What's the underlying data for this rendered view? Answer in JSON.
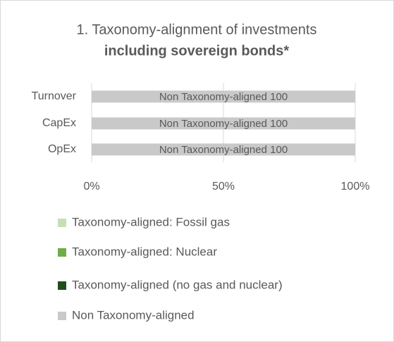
{
  "chart_data": {
    "type": "stacked-bar-horizontal",
    "title": "1. Taxonomy-alignment of investments",
    "subtitle": "including sovereign bonds*",
    "categories": [
      "Turnover",
      "CapEx",
      "OpEx"
    ],
    "series": [
      {
        "name": "Taxonomy-aligned: Fossil gas",
        "color": "#c5e0b4",
        "values": [
          0,
          0,
          0
        ]
      },
      {
        "name": "Taxonomy-aligned: Nuclear",
        "color": "#70ad47",
        "values": [
          0,
          0,
          0
        ]
      },
      {
        "name": "Taxonomy-aligned (no gas and nuclear)",
        "color": "#1f4e1f",
        "values": [
          0,
          0,
          0
        ]
      },
      {
        "name": "Non Taxonomy-aligned",
        "color": "#c9c9c9",
        "values": [
          100,
          100,
          100
        ]
      }
    ],
    "xlim": [
      0,
      100
    ],
    "xticks": [
      {
        "value": 0,
        "label": "0%"
      },
      {
        "value": 50,
        "label": "50%"
      },
      {
        "value": 100,
        "label": "100%"
      }
    ],
    "grid": true,
    "legend": "bottom"
  }
}
